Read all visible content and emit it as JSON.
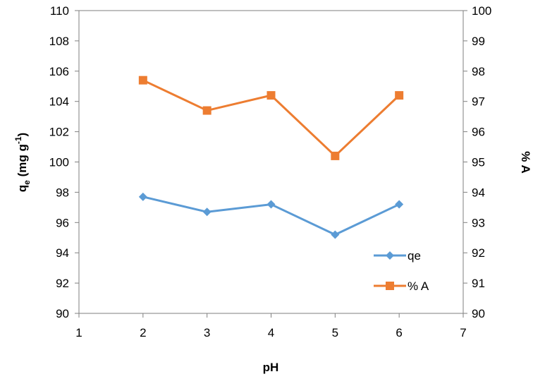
{
  "chart_data": {
    "type": "line",
    "xlabel": "pH",
    "ylabel": {
      "main": "q",
      "sub": "e",
      "units_pre": " (mg g",
      "sup": "-1",
      "units_post": ")"
    },
    "y2label": "% A",
    "xlim": [
      1,
      7
    ],
    "xticks": [
      1,
      2,
      3,
      4,
      5,
      6,
      7
    ],
    "ylim": [
      90,
      110
    ],
    "yticks": [
      90,
      92,
      94,
      96,
      98,
      100,
      102,
      104,
      106,
      108,
      110
    ],
    "y2lim": [
      90,
      100
    ],
    "y2ticks": [
      90,
      91,
      92,
      93,
      94,
      95,
      96,
      97,
      98,
      99,
      100
    ],
    "grid": false,
    "legend": "right",
    "series": [
      {
        "name": "qe",
        "axis": "left",
        "marker": "diamond",
        "color": "#5B9BD5",
        "x": [
          2,
          3,
          4,
          5,
          6
        ],
        "values": [
          97.7,
          96.7,
          97.2,
          95.2,
          97.2
        ]
      },
      {
        "name": "% A",
        "axis": "right",
        "marker": "square",
        "color": "#ED7D31",
        "x": [
          2,
          3,
          4,
          5,
          6
        ],
        "values": [
          97.7,
          96.7,
          97.2,
          95.2,
          97.2
        ]
      }
    ]
  }
}
